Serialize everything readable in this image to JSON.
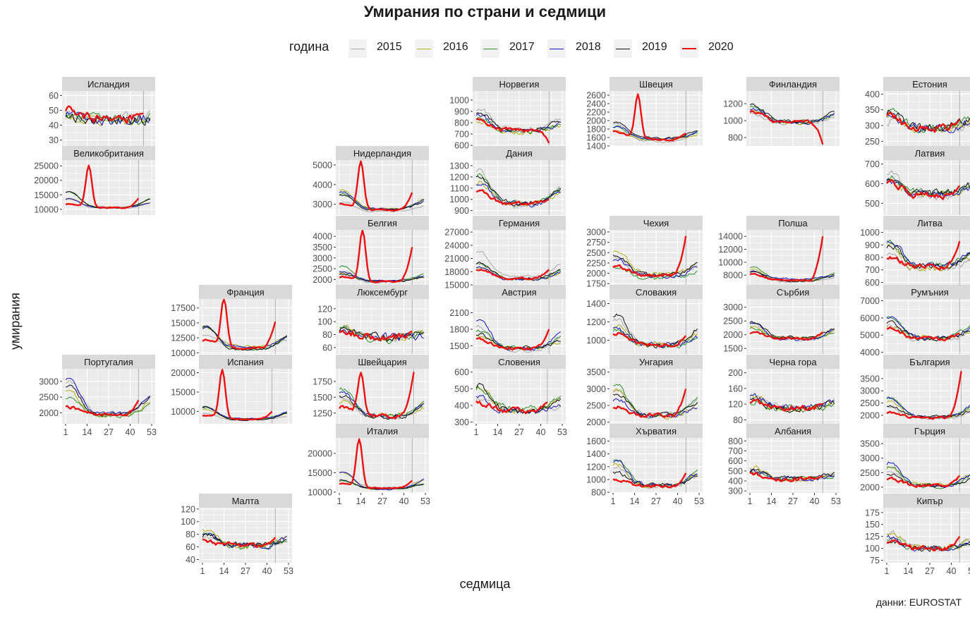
{
  "title": "Умирания по страни и седмици",
  "legend": {
    "title": "година",
    "items": [
      {
        "label": "2015",
        "color": "#aaaaaa",
        "width": 1
      },
      {
        "label": "2016",
        "color": "#b5ad17",
        "width": 1
      },
      {
        "label": "2017",
        "color": "#2a8f2a",
        "width": 1
      },
      {
        "label": "2018",
        "color": "#1414c8",
        "width": 1
      },
      {
        "label": "2019",
        "color": "#111111",
        "width": 1
      },
      {
        "label": "2020",
        "color": "#ee1111",
        "width": 2.4
      }
    ]
  },
  "axes": {
    "xlabel": "седмица",
    "ylabel": "умирания"
  },
  "caption": "данни: EUROSTAT",
  "chart_data": {
    "type": "line",
    "facet_type": "small-multiples grid (geographic layout)",
    "x": {
      "tick_labels": [
        "1",
        "14",
        "27",
        "40",
        "53"
      ],
      "tick_values": [
        1,
        14,
        27,
        40,
        53
      ],
      "range": [
        1,
        53
      ]
    },
    "series_names": [
      "2015",
      "2016",
      "2017",
      "2018",
      "2019",
      "2020"
    ],
    "panels": [
      {
        "name": "Исландия",
        "col": 0,
        "row": 0,
        "yticks": [
          30,
          40,
          50,
          60
        ],
        "ylim": [
          26,
          63
        ],
        "base": 44,
        "noise": 0.13,
        "seasonal": 0.08,
        "peak2020": null,
        "end2020": 48,
        "latest2020": 48,
        "xaxis": false
      },
      {
        "name": "Великобритания",
        "col": 0,
        "row": 1,
        "yticks": [
          10000,
          15000,
          20000,
          25000
        ],
        "ylim": [
          8000,
          27000
        ],
        "base": 10500,
        "noise": 0.03,
        "seasonal": 0.35,
        "peak2020": {
          "week": 15,
          "value": 24900
        },
        "end2020": 13800,
        "latest2020": 45,
        "xaxis": false
      },
      {
        "name": "Португалия",
        "col": 0,
        "row": 4,
        "yticks": [
          2000,
          2500,
          3000
        ],
        "ylim": [
          1650,
          3400
        ],
        "base": 1950,
        "noise": 0.05,
        "seasonal": 0.45,
        "peak2020": null,
        "end2020": 2400,
        "latest2020": 45,
        "xaxis": true
      },
      {
        "name": "Франция",
        "col": 1,
        "row": 3,
        "yticks": [
          10000,
          12500,
          15000,
          17500
        ],
        "ylim": [
          9800,
          19000
        ],
        "base": 10800,
        "noise": 0.03,
        "seasonal": 0.3,
        "peak2020": {
          "week": 14,
          "value": 18800
        },
        "end2020": 15200,
        "latest2020": 45,
        "xaxis": false
      },
      {
        "name": "Испания",
        "col": 1,
        "row": 4,
        "yticks": [
          10000,
          15000,
          20000
        ],
        "ylim": [
          6800,
          21000
        ],
        "base": 8000,
        "noise": 0.03,
        "seasonal": 0.3,
        "peak2020": {
          "week": 13,
          "value": 20500
        },
        "end2020": 10000,
        "latest2020": 43,
        "xaxis": false
      },
      {
        "name": "Малта",
        "col": 1,
        "row": 6,
        "yticks": [
          40,
          60,
          80,
          100,
          120
        ],
        "ylim": [
          35,
          122
        ],
        "base": 62,
        "noise": 0.13,
        "seasonal": 0.35,
        "peak2020": null,
        "end2020": 75,
        "latest2020": 45,
        "xaxis": true
      },
      {
        "name": "Нидерландия",
        "col": 2,
        "row": 1,
        "yticks": [
          3000,
          4000,
          5000
        ],
        "ylim": [
          2450,
          5250
        ],
        "base": 2700,
        "noise": 0.03,
        "seasonal": 0.25,
        "peak2020": {
          "week": 14,
          "value": 5100
        },
        "end2020": 3600,
        "latest2020": 45,
        "xaxis": false
      },
      {
        "name": "Белгия",
        "col": 2,
        "row": 2,
        "yticks": [
          2000,
          2500,
          3000,
          3500,
          4000
        ],
        "ylim": [
          1750,
          4300
        ],
        "base": 1900,
        "noise": 0.04,
        "seasonal": 0.25,
        "peak2020": {
          "week": 15,
          "value": 4300
        },
        "end2020": 3500,
        "latest2020": 45,
        "xaxis": false
      },
      {
        "name": "Люксембург",
        "col": 2,
        "row": 3,
        "yticks": [
          60,
          80,
          100,
          120
        ],
        "ylim": [
          50,
          135
        ],
        "base": 75,
        "noise": 0.14,
        "seasonal": 0.15,
        "peak2020": null,
        "end2020": 85,
        "latest2020": 45,
        "xaxis": false
      },
      {
        "name": "Швейцария",
        "col": 2,
        "row": 4,
        "yticks": [
          1250,
          1500,
          1750
        ],
        "ylim": [
          1080,
          1950
        ],
        "base": 1200,
        "noise": 0.05,
        "seasonal": 0.25,
        "peak2020": {
          "week": 14,
          "value": 1850
        },
        "end2020": 1900,
        "latest2020": 46,
        "xaxis": false
      },
      {
        "name": "Италия",
        "col": 2,
        "row": 5,
        "yticks": [
          10000,
          15000,
          20000
        ],
        "ylim": [
          9800,
          24000
        ],
        "base": 11000,
        "noise": 0.03,
        "seasonal": 0.3,
        "peak2020": {
          "week": 13,
          "value": 23200
        },
        "end2020": 13000,
        "latest2020": 45,
        "xaxis": true
      },
      {
        "name": "Норвегия",
        "col": 3,
        "row": 0,
        "yticks": [
          600,
          700,
          800,
          900,
          1000
        ],
        "ylim": [
          595,
          1080
        ],
        "base": 730,
        "noise": 0.05,
        "seasonal": 0.2,
        "peak2020": null,
        "end2020": 620,
        "latest2020": 45,
        "xaxis": false
      },
      {
        "name": "Дания",
        "col": 3,
        "row": 1,
        "yticks": [
          900,
          1000,
          1100,
          1200,
          1300
        ],
        "ylim": [
          860,
          1350
        ],
        "base": 960,
        "noise": 0.04,
        "seasonal": 0.22,
        "peak2020": null,
        "end2020": 1000,
        "latest2020": 45,
        "xaxis": false
      },
      {
        "name": "Германия",
        "col": 3,
        "row": 2,
        "yticks": [
          15000,
          18000,
          21000,
          24000,
          27000
        ],
        "ylim": [
          15000,
          27500
        ],
        "base": 16500,
        "noise": 0.03,
        "seasonal": 0.25,
        "peak2020": null,
        "end2020": 18500,
        "latest2020": 45,
        "xaxis": false
      },
      {
        "name": "Австрия",
        "col": 3,
        "row": 3,
        "yticks": [
          1500,
          1800,
          2100
        ],
        "ylim": [
          1350,
          2350
        ],
        "base": 1450,
        "noise": 0.04,
        "seasonal": 0.25,
        "peak2020": null,
        "end2020": 1800,
        "latest2020": 45,
        "xaxis": false
      },
      {
        "name": "Словения",
        "col": 3,
        "row": 4,
        "yticks": [
          300,
          400,
          500,
          600
        ],
        "ylim": [
          290,
          620
        ],
        "base": 370,
        "noise": 0.09,
        "seasonal": 0.28,
        "peak2020": null,
        "end2020": 420,
        "latest2020": 44,
        "xaxis": true
      },
      {
        "name": "Швеция",
        "col": 4,
        "row": 0,
        "yticks": [
          1400,
          1600,
          1800,
          2000,
          2200,
          2400,
          2600
        ],
        "ylim": [
          1400,
          2700
        ],
        "base": 1550,
        "noise": 0.03,
        "seasonal": 0.22,
        "peak2020": {
          "week": 16,
          "value": 2600
        },
        "end2020": 1700,
        "latest2020": 45,
        "xaxis": false
      },
      {
        "name": "Чехия",
        "col": 4,
        "row": 2,
        "yticks": [
          1750,
          2000,
          2250,
          2500,
          2750,
          3000
        ],
        "ylim": [
          1720,
          3050
        ],
        "base": 1950,
        "noise": 0.04,
        "seasonal": 0.22,
        "peak2020": null,
        "end2020": 2900,
        "latest2020": 45,
        "xaxis": false
      },
      {
        "name": "Словакия",
        "col": 4,
        "row": 3,
        "yticks": [
          1000,
          1200,
          1400
        ],
        "ylim": [
          850,
          1450
        ],
        "base": 950,
        "noise": 0.05,
        "seasonal": 0.25,
        "peak2020": null,
        "end2020": 1050,
        "latest2020": 45,
        "xaxis": false
      },
      {
        "name": "Унгария",
        "col": 4,
        "row": 4,
        "yticks": [
          2000,
          2500,
          3000,
          3500
        ],
        "ylim": [
          1950,
          3600
        ],
        "base": 2200,
        "noise": 0.05,
        "seasonal": 0.3,
        "peak2020": null,
        "end2020": 3000,
        "latest2020": 45,
        "xaxis": false
      },
      {
        "name": "Хърватия",
        "col": 4,
        "row": 5,
        "yticks": [
          800,
          1000,
          1200,
          1400,
          1600
        ],
        "ylim": [
          790,
          1650
        ],
        "base": 900,
        "noise": 0.06,
        "seasonal": 0.3,
        "peak2020": null,
        "end2020": 1100,
        "latest2020": 45,
        "xaxis": true
      },
      {
        "name": "Финландия",
        "col": 5,
        "row": 0,
        "yticks": [
          800,
          1000,
          1200
        ],
        "ylim": [
          700,
          1350
        ],
        "base": 980,
        "noise": 0.04,
        "seasonal": 0.15,
        "peak2020": null,
        "end2020": 720,
        "latest2020": 45,
        "xaxis": false
      },
      {
        "name": "Полша",
        "col": 5,
        "row": 2,
        "yticks": [
          8000,
          10000,
          12000,
          14000
        ],
        "ylim": [
          6500,
          15000
        ],
        "base": 7200,
        "noise": 0.03,
        "seasonal": 0.2,
        "peak2020": null,
        "end2020": 14000,
        "latest2020": 45,
        "xaxis": false
      },
      {
        "name": "Сърбия",
        "col": 5,
        "row": 3,
        "yticks": [
          1500,
          2000,
          2500,
          3000
        ],
        "ylim": [
          1300,
          3300
        ],
        "base": 1850,
        "noise": 0.05,
        "seasonal": 0.25,
        "peak2020": null,
        "end2020": 2100,
        "latest2020": 45,
        "xaxis": false
      },
      {
        "name": "Черна гора",
        "col": 5,
        "row": 4,
        "yticks": [
          80,
          120,
          160,
          200
        ],
        "ylim": [
          70,
          210
        ],
        "base": 110,
        "noise": 0.13,
        "seasonal": 0.2,
        "peak2020": null,
        "end2020": 120,
        "latest2020": 45,
        "xaxis": false
      },
      {
        "name": "Албания",
        "col": 5,
        "row": 5,
        "yticks": [
          300,
          400,
          500,
          600,
          700,
          800
        ],
        "ylim": [
          280,
          830
        ],
        "base": 420,
        "noise": 0.1,
        "seasonal": 0.2,
        "peak2020": null,
        "end2020": 450,
        "latest2020": 45,
        "xaxis": true
      },
      {
        "name": "Естония",
        "col": 6,
        "row": 0,
        "yticks": [
          250,
          300,
          350,
          400
        ],
        "ylim": [
          235,
          410
        ],
        "base": 290,
        "noise": 0.08,
        "seasonal": 0.15,
        "peak2020": null,
        "end2020": 320,
        "latest2020": 45,
        "xaxis": false
      },
      {
        "name": "Латвия",
        "col": 6,
        "row": 1,
        "yticks": [
          500,
          600,
          700
        ],
        "ylim": [
          440,
          720
        ],
        "base": 540,
        "noise": 0.06,
        "seasonal": 0.15,
        "peak2020": null,
        "end2020": 590,
        "latest2020": 45,
        "xaxis": false
      },
      {
        "name": "Литва",
        "col": 6,
        "row": 2,
        "yticks": [
          600,
          700,
          800,
          900,
          1000
        ],
        "ylim": [
          580,
          1020
        ],
        "base": 720,
        "noise": 0.06,
        "seasonal": 0.2,
        "peak2020": null,
        "end2020": 930,
        "latest2020": 45,
        "xaxis": false
      },
      {
        "name": "Румъния",
        "col": 6,
        "row": 3,
        "yticks": [
          4000,
          5000,
          6000,
          7000
        ],
        "ylim": [
          3900,
          7100
        ],
        "base": 4800,
        "noise": 0.04,
        "seasonal": 0.2,
        "peak2020": null,
        "end2020": 5100,
        "latest2020": 45,
        "xaxis": false
      },
      {
        "name": "България",
        "col": 6,
        "row": 4,
        "yticks": [
          2000,
          2500,
          3000,
          3500
        ],
        "ylim": [
          1650,
          3900
        ],
        "base": 1900,
        "noise": 0.05,
        "seasonal": 0.3,
        "peak2020": null,
        "end2020": 3800,
        "latest2020": 46,
        "xaxis": false
      },
      {
        "name": "Гърция",
        "col": 6,
        "row": 5,
        "yticks": [
          2000,
          2500,
          3000,
          3500
        ],
        "ylim": [
          1800,
          3700
        ],
        "base": 2050,
        "noise": 0.05,
        "seasonal": 0.3,
        "peak2020": null,
        "end2020": 2400,
        "latest2020": 45,
        "xaxis": false
      },
      {
        "name": "Кипър",
        "col": 6,
        "row": 6,
        "yticks": [
          75,
          100,
          125,
          150,
          175
        ],
        "ylim": [
          70,
          185
        ],
        "base": 100,
        "noise": 0.1,
        "seasonal": 0.25,
        "peak2020": null,
        "end2020": 125,
        "latest2020": 45,
        "xaxis": true
      }
    ]
  }
}
